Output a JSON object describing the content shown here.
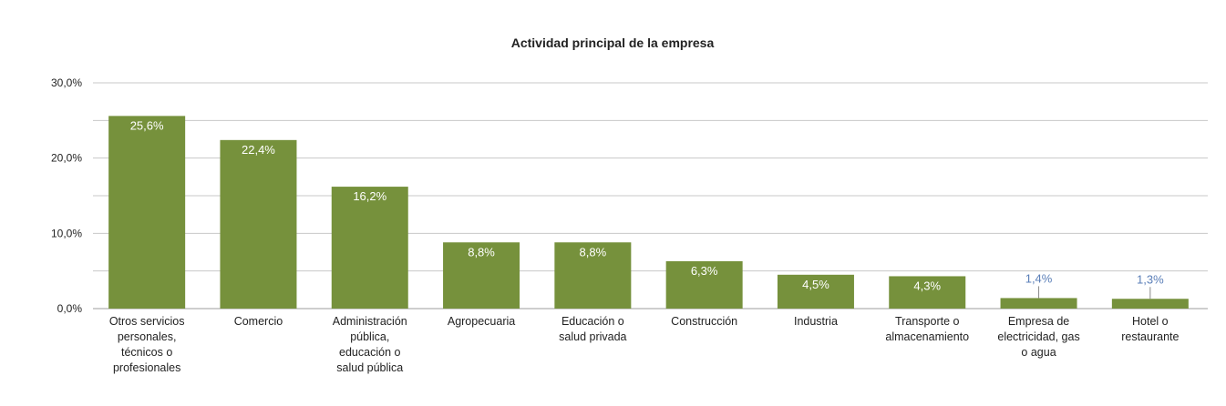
{
  "chart_data": {
    "type": "bar",
    "title": "Actividad principal de la empresa",
    "xlabel": "",
    "ylabel": "",
    "ylim": [
      0,
      30
    ],
    "yticks": [
      0,
      10,
      20,
      30
    ],
    "ytick_labels": [
      "0,0%",
      "10,0%",
      "20,0%",
      "30,0%"
    ],
    "grid": true,
    "legend": "none",
    "categories": [
      [
        "Otros servicios",
        "personales,",
        "técnicos o",
        "profesionales"
      ],
      [
        "Comercio"
      ],
      [
        "Administración",
        "pública,",
        "educación o",
        "salud pública"
      ],
      [
        "Agropecuaria"
      ],
      [
        "Educación o",
        "salud privada"
      ],
      [
        "Construcción"
      ],
      [
        "Industria"
      ],
      [
        "Transporte o",
        "almacenamiento"
      ],
      [
        "Empresa de",
        "electricidad, gas",
        "o agua"
      ],
      [
        "Hotel o",
        "restaurante"
      ]
    ],
    "values": [
      25.6,
      22.4,
      16.2,
      8.8,
      8.8,
      6.3,
      4.5,
      4.3,
      1.4,
      1.3
    ],
    "value_labels": [
      "25,6%",
      "22,4%",
      "16,2%",
      "8,8%",
      "8,8%",
      "6,3%",
      "4,5%",
      "4,3%",
      "1,4%",
      "1,3%"
    ],
    "colors": {
      "bar": "#76913c",
      "grid": "#c8c8c8",
      "inside_label": "#ffffff",
      "outside_label": "#5b7fb8"
    }
  }
}
